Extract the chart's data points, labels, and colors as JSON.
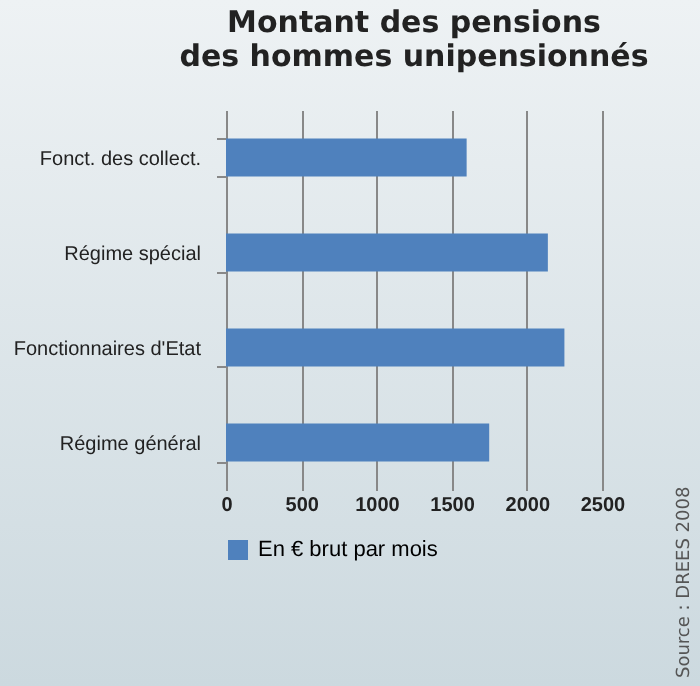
{
  "chart_data": {
    "type": "bar",
    "orientation": "horizontal",
    "title": "Montant des pensions\ndes hommes unipensionnés",
    "categories": [
      "Fonct. des collect.",
      "Régime spécial",
      "Fonctionnaires d'Etat",
      "Régime général"
    ],
    "series": [
      {
        "name": "En € brut par mois",
        "color": "#4f81bd",
        "values": [
          1600,
          2140,
          2250,
          1750
        ]
      }
    ],
    "xlim": [
      0,
      2500
    ],
    "xticks": [
      0,
      500,
      1000,
      1500,
      2000,
      2500
    ],
    "grid": "x",
    "legend": "bottom",
    "annotations": [
      "Source : DREES 2008"
    ]
  }
}
